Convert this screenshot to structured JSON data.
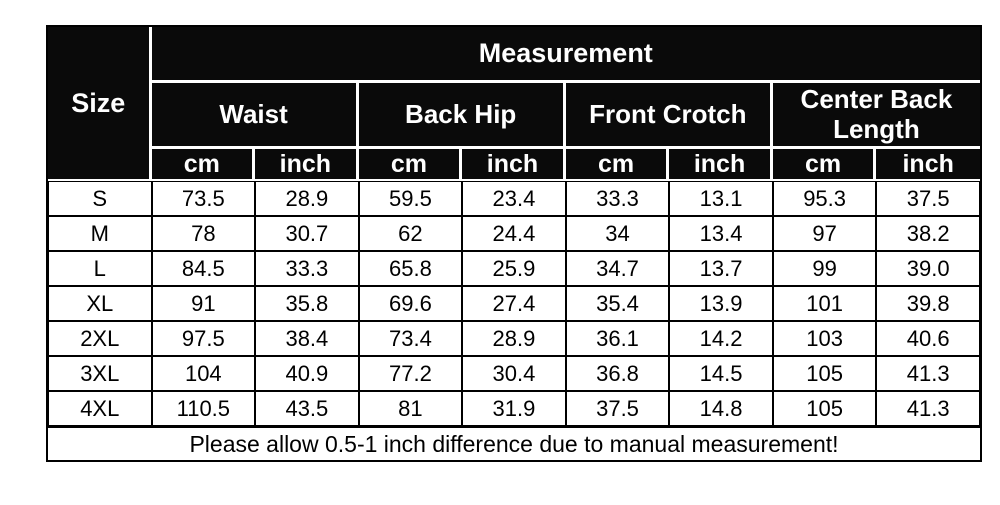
{
  "page": {
    "background": "#ffffff"
  },
  "colors": {
    "header_bg": "#0a0a0a",
    "header_text": "#ffffff",
    "body_bg": "#ffffff",
    "body_text": "#000000",
    "grid_line": "#000000",
    "header_divider": "#ffffff"
  },
  "table": {
    "title": "Measurement",
    "size_header": "Size",
    "groups": [
      {
        "label": "Waist"
      },
      {
        "label": "Back Hip"
      },
      {
        "label": "Front Crotch"
      },
      {
        "label": "Center Back Length"
      }
    ],
    "unit_headers": [
      "cm",
      "inch"
    ],
    "rows": [
      {
        "size": "S",
        "values": [
          "73.5",
          "28.9",
          "59.5",
          "23.4",
          "33.3",
          "13.1",
          "95.3",
          "37.5"
        ]
      },
      {
        "size": "M",
        "values": [
          "78",
          "30.7",
          "62",
          "24.4",
          "34",
          "13.4",
          "97",
          "38.2"
        ]
      },
      {
        "size": "L",
        "values": [
          "84.5",
          "33.3",
          "65.8",
          "25.9",
          "34.7",
          "13.7",
          "99",
          "39.0"
        ]
      },
      {
        "size": "XL",
        "values": [
          "91",
          "35.8",
          "69.6",
          "27.4",
          "35.4",
          "13.9",
          "101",
          "39.8"
        ]
      },
      {
        "size": "2XL",
        "values": [
          "97.5",
          "38.4",
          "73.4",
          "28.9",
          "36.1",
          "14.2",
          "103",
          "40.6"
        ]
      },
      {
        "size": "3XL",
        "values": [
          "104",
          "40.9",
          "77.2",
          "30.4",
          "36.8",
          "14.5",
          "105",
          "41.3"
        ]
      },
      {
        "size": "4XL",
        "values": [
          "110.5",
          "43.5",
          "81",
          "31.9",
          "37.5",
          "14.8",
          "105",
          "41.3"
        ]
      }
    ],
    "footer_note": "Please allow 0.5-1 inch difference due to manual measurement!"
  }
}
